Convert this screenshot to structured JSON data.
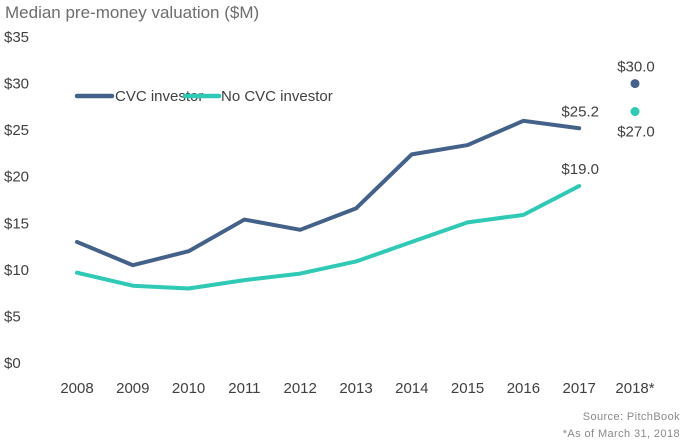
{
  "chart_data": {
    "type": "line",
    "title": "Median pre-money valuation ($M)",
    "categories": [
      "2008",
      "2009",
      "2010",
      "2011",
      "2012",
      "2013",
      "2014",
      "2015",
      "2016",
      "2017",
      "2018*"
    ],
    "ylim": [
      0,
      35
    ],
    "yticks": [
      0,
      5,
      10,
      15,
      20,
      25,
      30,
      35
    ],
    "ytick_labels": [
      "$0",
      "$5",
      "$10",
      "$15",
      "$20",
      "$25",
      "$30",
      "$35"
    ],
    "grid": false,
    "legend_position": "top-left",
    "series": [
      {
        "name": "CVC investor",
        "color": "#44618a",
        "values": [
          13.0,
          10.5,
          12.0,
          15.4,
          14.3,
          16.6,
          22.4,
          23.4,
          26.0,
          25.2,
          30.0
        ],
        "labels": [
          {
            "index": 9,
            "text": "$25.2",
            "position": "above"
          },
          {
            "index": 10,
            "text": "$30.0",
            "position": "above"
          }
        ]
      },
      {
        "name": "No CVC investor",
        "color": "#2fc9b5",
        "values": [
          9.7,
          8.3,
          8.0,
          8.9,
          9.6,
          10.9,
          13.0,
          15.1,
          15.9,
          19.0,
          27.0
        ],
        "labels": [
          {
            "index": 9,
            "text": "$19.0",
            "position": "above"
          },
          {
            "index": 10,
            "text": "$27.0",
            "position": "below"
          }
        ]
      }
    ],
    "isolated_point_index": 10,
    "source": "Source: PitchBook",
    "footnote": "*As of March 31, 2018"
  }
}
